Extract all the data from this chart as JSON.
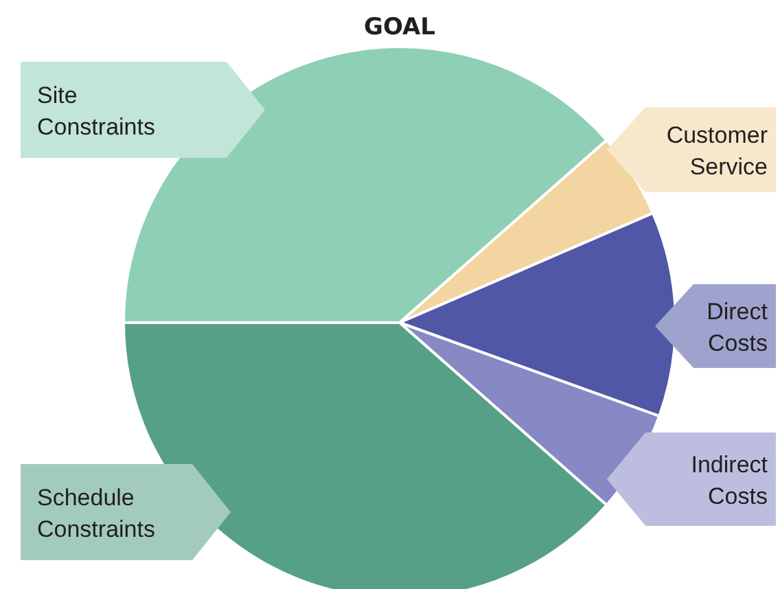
{
  "chart_data": {
    "type": "pie",
    "title": "GOAL",
    "categories": [
      "Site Constraints",
      "Customer Service",
      "Direct Costs",
      "Indirect Costs",
      "Schedule Constraints"
    ],
    "values": [
      38.5,
      5,
      12,
      6,
      38.5
    ],
    "colors": [
      "#8ecfb5",
      "#f2d5a0",
      "#4f57a6",
      "#8789c4",
      "#56a088"
    ]
  }
}
